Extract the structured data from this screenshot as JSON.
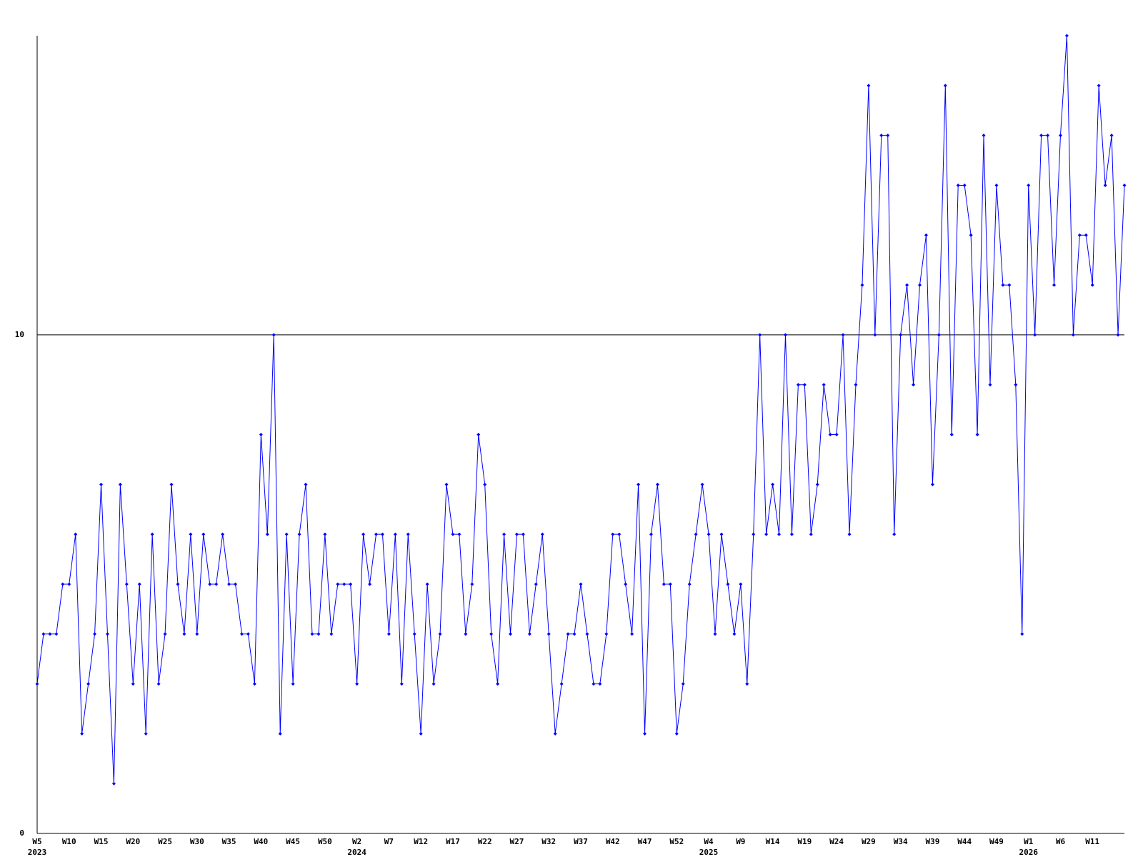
{
  "chart_data": {
    "type": "line",
    "categories": [
      "W5",
      null,
      null,
      null,
      null,
      "W10",
      null,
      null,
      null,
      null,
      "W15",
      null,
      null,
      null,
      null,
      "W20",
      null,
      null,
      null,
      null,
      "W25",
      null,
      null,
      null,
      null,
      "W30",
      null,
      null,
      null,
      null,
      "W35",
      null,
      null,
      null,
      null,
      "W40",
      null,
      null,
      null,
      null,
      "W45",
      null,
      null,
      null,
      null,
      "W50",
      null,
      null,
      null,
      null,
      "W2",
      null,
      null,
      null,
      null,
      "W7",
      null,
      null,
      null,
      null,
      "W12",
      null,
      null,
      null,
      null,
      "W17",
      null,
      null,
      null,
      null,
      "W22",
      null,
      null,
      null,
      null,
      "W27",
      null,
      null,
      null,
      null,
      "W32",
      null,
      null,
      null,
      null,
      "W37",
      null,
      null,
      null,
      null,
      "W42",
      null,
      null,
      null,
      null,
      "W47",
      null,
      null,
      null,
      null,
      "W52",
      null,
      null,
      null,
      null,
      "W4",
      null,
      null,
      null,
      null,
      "W9",
      null,
      null,
      null,
      null,
      "W14",
      null,
      null,
      null,
      null,
      "W19",
      null,
      null,
      null,
      null,
      "W24",
      null,
      null,
      null,
      null,
      "W29",
      null,
      null,
      null,
      null,
      "W34",
      null,
      null,
      null,
      null,
      "W39",
      null,
      null,
      null,
      null,
      "W44",
      null,
      null,
      null,
      null,
      "W49",
      null,
      null,
      null,
      null,
      "W1",
      null,
      null,
      null,
      null,
      "W6",
      null,
      null,
      null,
      null,
      "W11",
      null,
      null,
      null,
      null,
      null
    ],
    "category_years": {
      "0": "2023",
      "50": "2024",
      "105": "2025",
      "155": "2026"
    },
    "series": [
      {
        "color": "#0000ff",
        "values": [
          3,
          4,
          4,
          4,
          5,
          5,
          6,
          2,
          3,
          4,
          7,
          4,
          1,
          7,
          5,
          3,
          5,
          2,
          6,
          3,
          4,
          7,
          5,
          4,
          6,
          4,
          6,
          5,
          5,
          6,
          5,
          5,
          4,
          4,
          3,
          8,
          6,
          10,
          2,
          6,
          3,
          6,
          7,
          4,
          4,
          6,
          4,
          5,
          5,
          5,
          3,
          6,
          5,
          6,
          6,
          4,
          6,
          3,
          6,
          4,
          2,
          5,
          3,
          4,
          7,
          6,
          6,
          4,
          5,
          8,
          7,
          4,
          3,
          6,
          4,
          6,
          6,
          4,
          5,
          6,
          4,
          2,
          3,
          4,
          4,
          5,
          4,
          3,
          3,
          4,
          6,
          6,
          5,
          4,
          7,
          2,
          6,
          7,
          5,
          5,
          2,
          3,
          5,
          6,
          7,
          6,
          4,
          6,
          5,
          4,
          5,
          3,
          6,
          10,
          6,
          7,
          6,
          10,
          6,
          9,
          9,
          6,
          7,
          9,
          8,
          8,
          10,
          6,
          9,
          11,
          15,
          10,
          14,
          14,
          6,
          10,
          11,
          9,
          11,
          12,
          7,
          10,
          15,
          8,
          13,
          13,
          12,
          8,
          14,
          9,
          13,
          11,
          11,
          9,
          4,
          13,
          10,
          14,
          14,
          11,
          14,
          16,
          10,
          12,
          12,
          11,
          15,
          13,
          14,
          10,
          13
        ]
      }
    ],
    "ylim": [
      0,
      16
    ],
    "yticks": [
      0,
      10
    ],
    "grid": true
  }
}
